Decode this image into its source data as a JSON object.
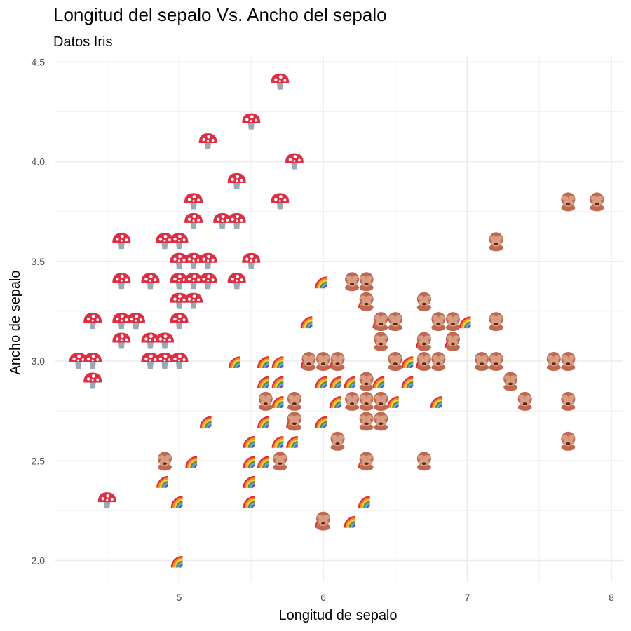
{
  "chart_data": {
    "type": "scatter",
    "title": "Longitud del sepalo Vs. Ancho del sepalo",
    "subtitle": "Datos Iris",
    "xlabel": "Longitud de sepalo",
    "ylabel": "Ancho de sepalo",
    "xlim": [
      4.2,
      8.1
    ],
    "ylim": [
      1.95,
      4.5
    ],
    "xticks": [
      5,
      6,
      7,
      8
    ],
    "xtick_labels": [
      "5",
      "6",
      "7",
      "8"
    ],
    "yticks": [
      2.0,
      2.5,
      3.0,
      3.5,
      4.0,
      4.5
    ],
    "ytick_labels": [
      "2.0",
      "2.5",
      "3.0",
      "3.5",
      "4.0",
      "4.5"
    ],
    "grid": true,
    "legend": "none",
    "marker": "emoji",
    "series": [
      {
        "icon": "mushroom-icon",
        "colors": {
          "cap": "#dd2e44",
          "spot": "#ffffff",
          "stem": "#99aab5"
        },
        "points": [
          [
            5.1,
            3.5
          ],
          [
            4.9,
            3.0
          ],
          [
            4.7,
            3.2
          ],
          [
            4.6,
            3.1
          ],
          [
            5.0,
            3.6
          ],
          [
            5.4,
            3.9
          ],
          [
            4.6,
            3.4
          ],
          [
            5.0,
            3.4
          ],
          [
            4.4,
            2.9
          ],
          [
            4.9,
            3.1
          ],
          [
            5.4,
            3.7
          ],
          [
            4.8,
            3.4
          ],
          [
            4.8,
            3.0
          ],
          [
            4.3,
            3.0
          ],
          [
            5.8,
            4.0
          ],
          [
            5.7,
            4.4
          ],
          [
            5.4,
            3.9
          ],
          [
            5.1,
            3.5
          ],
          [
            5.7,
            3.8
          ],
          [
            5.1,
            3.8
          ],
          [
            5.4,
            3.4
          ],
          [
            5.1,
            3.7
          ],
          [
            4.6,
            3.6
          ],
          [
            5.1,
            3.3
          ],
          [
            4.8,
            3.4
          ],
          [
            5.0,
            3.0
          ],
          [
            5.0,
            3.4
          ],
          [
            5.2,
            3.5
          ],
          [
            5.2,
            3.4
          ],
          [
            4.7,
            3.2
          ],
          [
            4.8,
            3.1
          ],
          [
            5.4,
            3.4
          ],
          [
            5.2,
            4.1
          ],
          [
            5.5,
            4.2
          ],
          [
            4.9,
            3.1
          ],
          [
            5.0,
            3.2
          ],
          [
            5.5,
            3.5
          ],
          [
            4.9,
            3.6
          ],
          [
            4.4,
            3.0
          ],
          [
            5.1,
            3.4
          ],
          [
            5.0,
            3.5
          ],
          [
            4.5,
            2.3
          ],
          [
            4.4,
            3.2
          ],
          [
            5.0,
            3.5
          ],
          [
            5.1,
            3.8
          ],
          [
            4.8,
            3.0
          ],
          [
            5.1,
            3.8
          ],
          [
            4.6,
            3.2
          ],
          [
            5.3,
            3.7
          ],
          [
            5.0,
            3.3
          ]
        ]
      },
      {
        "icon": "rainbow-icon",
        "colors": {
          "red": "#dd2e44",
          "orange": "#f4900c",
          "yellow": "#ffcc4d",
          "green": "#5c913b",
          "blue": "#55acee",
          "purple": "#744eaa"
        },
        "points": [
          [
            7.0,
            3.2
          ],
          [
            6.4,
            3.2
          ],
          [
            6.9,
            3.1
          ],
          [
            5.5,
            2.3
          ],
          [
            6.5,
            2.8
          ],
          [
            5.7,
            2.8
          ],
          [
            6.3,
            3.3
          ],
          [
            4.9,
            2.4
          ],
          [
            6.6,
            2.9
          ],
          [
            5.2,
            2.7
          ],
          [
            5.0,
            2.0
          ],
          [
            5.9,
            3.0
          ],
          [
            6.0,
            2.2
          ],
          [
            6.1,
            2.9
          ],
          [
            5.6,
            2.9
          ],
          [
            6.7,
            3.1
          ],
          [
            5.6,
            3.0
          ],
          [
            5.8,
            2.7
          ],
          [
            6.2,
            2.2
          ],
          [
            5.6,
            2.5
          ],
          [
            5.9,
            3.2
          ],
          [
            6.1,
            2.8
          ],
          [
            6.3,
            2.5
          ],
          [
            6.1,
            2.8
          ],
          [
            6.4,
            2.9
          ],
          [
            6.6,
            3.0
          ],
          [
            6.8,
            2.8
          ],
          [
            6.7,
            3.0
          ],
          [
            6.0,
            2.9
          ],
          [
            5.7,
            2.6
          ],
          [
            5.5,
            2.4
          ],
          [
            5.5,
            2.4
          ],
          [
            5.8,
            2.7
          ],
          [
            6.0,
            2.7
          ],
          [
            5.4,
            3.0
          ],
          [
            6.0,
            3.4
          ],
          [
            6.7,
            3.1
          ],
          [
            6.3,
            2.3
          ],
          [
            5.6,
            3.0
          ],
          [
            5.5,
            2.5
          ],
          [
            5.5,
            2.6
          ],
          [
            6.1,
            3.0
          ],
          [
            5.8,
            2.6
          ],
          [
            5.0,
            2.3
          ],
          [
            5.6,
            2.7
          ],
          [
            5.7,
            3.0
          ],
          [
            5.7,
            2.9
          ],
          [
            6.2,
            2.9
          ],
          [
            5.1,
            2.5
          ],
          [
            5.7,
            2.8
          ]
        ]
      },
      {
        "icon": "see-no-evil-monkey-icon",
        "colors": {
          "fur": "#bf6952",
          "face": "#d79e84",
          "dark": "#662113"
        },
        "points": [
          [
            6.3,
            3.3
          ],
          [
            5.8,
            2.7
          ],
          [
            7.1,
            3.0
          ],
          [
            6.3,
            2.9
          ],
          [
            6.5,
            3.0
          ],
          [
            7.6,
            3.0
          ],
          [
            4.9,
            2.5
          ],
          [
            7.3,
            2.9
          ],
          [
            6.7,
            2.5
          ],
          [
            7.2,
            3.6
          ],
          [
            6.5,
            3.2
          ],
          [
            6.4,
            2.7
          ],
          [
            6.8,
            3.0
          ],
          [
            5.7,
            2.5
          ],
          [
            5.8,
            2.8
          ],
          [
            6.4,
            3.2
          ],
          [
            6.5,
            3.0
          ],
          [
            7.7,
            3.8
          ],
          [
            7.7,
            2.6
          ],
          [
            6.0,
            2.2
          ],
          [
            6.9,
            3.2
          ],
          [
            5.6,
            2.8
          ],
          [
            7.7,
            2.8
          ],
          [
            6.3,
            2.7
          ],
          [
            6.7,
            3.3
          ],
          [
            7.2,
            3.2
          ],
          [
            6.2,
            2.8
          ],
          [
            6.1,
            3.0
          ],
          [
            6.4,
            2.8
          ],
          [
            7.2,
            3.0
          ],
          [
            7.4,
            2.8
          ],
          [
            7.9,
            3.8
          ],
          [
            6.4,
            2.8
          ],
          [
            6.3,
            2.8
          ],
          [
            6.1,
            2.6
          ],
          [
            7.7,
            3.0
          ],
          [
            6.3,
            3.4
          ],
          [
            6.4,
            3.1
          ],
          [
            6.0,
            3.0
          ],
          [
            6.9,
            3.1
          ],
          [
            6.7,
            3.1
          ],
          [
            6.9,
            3.1
          ],
          [
            5.8,
            2.7
          ],
          [
            6.8,
            3.2
          ],
          [
            6.7,
            3.3
          ],
          [
            6.7,
            3.0
          ],
          [
            6.3,
            2.5
          ],
          [
            6.5,
            3.0
          ],
          [
            6.2,
            3.4
          ],
          [
            5.9,
            3.0
          ]
        ]
      }
    ]
  }
}
